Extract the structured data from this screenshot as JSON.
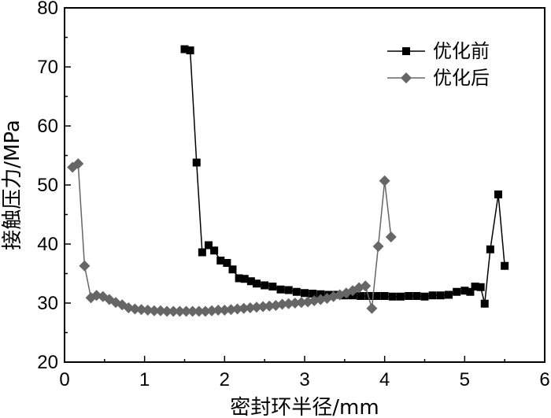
{
  "chart_data": {
    "type": "line",
    "xlabel": "密封环半径/mm",
    "ylabel": "接触压力/MPa",
    "xlim": [
      0,
      6
    ],
    "ylim": [
      20,
      80
    ],
    "xticks": [
      "0",
      "1",
      "2",
      "3",
      "4",
      "5",
      "6"
    ],
    "yticks": [
      "20",
      "30",
      "40",
      "50",
      "60",
      "70",
      "80"
    ],
    "grid": false,
    "legend_position": "top-right",
    "series": [
      {
        "name": "优化前",
        "marker": "square",
        "color": "#000000",
        "x": [
          1.5,
          1.57,
          1.65,
          1.72,
          1.8,
          1.87,
          1.95,
          2.03,
          2.1,
          2.18,
          2.25,
          2.33,
          2.4,
          2.5,
          2.6,
          2.7,
          2.8,
          2.9,
          3.0,
          3.1,
          3.2,
          3.3,
          3.4,
          3.5,
          3.6,
          3.7,
          3.8,
          3.9,
          4.0,
          4.1,
          4.2,
          4.3,
          4.4,
          4.5,
          4.6,
          4.7,
          4.8,
          4.9,
          5.0,
          5.07,
          5.13,
          5.2,
          5.25,
          5.32,
          5.42,
          5.5
        ],
        "y": [
          73.0,
          72.8,
          53.8,
          38.6,
          39.8,
          38.9,
          37.2,
          36.8,
          35.7,
          34.2,
          34.1,
          33.7,
          33.3,
          33.0,
          32.8,
          32.3,
          32.2,
          31.9,
          31.7,
          31.6,
          31.5,
          31.4,
          31.4,
          31.3,
          31.3,
          31.2,
          31.2,
          31.2,
          31.2,
          31.1,
          31.1,
          31.2,
          31.2,
          31.1,
          31.3,
          31.3,
          31.4,
          31.9,
          32.1,
          31.9,
          32.8,
          32.7,
          29.9,
          39.1,
          48.4,
          36.3
        ]
      },
      {
        "name": "优化后",
        "marker": "diamond",
        "color": "#666666",
        "x": [
          0.1,
          0.17,
          0.25,
          0.33,
          0.4,
          0.48,
          0.56,
          0.64,
          0.72,
          0.8,
          0.88,
          0.96,
          1.04,
          1.12,
          1.2,
          1.28,
          1.36,
          1.44,
          1.52,
          1.6,
          1.68,
          1.76,
          1.84,
          1.92,
          2.0,
          2.08,
          2.16,
          2.24,
          2.32,
          2.4,
          2.48,
          2.56,
          2.64,
          2.72,
          2.8,
          2.88,
          2.96,
          3.04,
          3.12,
          3.2,
          3.28,
          3.36,
          3.44,
          3.52,
          3.6,
          3.68,
          3.76,
          3.84,
          3.92,
          4.0,
          4.08
        ],
        "y": [
          53.0,
          53.6,
          36.3,
          30.9,
          31.3,
          31.1,
          30.6,
          30.1,
          29.7,
          29.2,
          29.0,
          28.9,
          28.8,
          28.7,
          28.7,
          28.6,
          28.6,
          28.6,
          28.6,
          28.6,
          28.6,
          28.6,
          28.7,
          28.8,
          28.8,
          28.9,
          29.0,
          29.1,
          29.2,
          29.3,
          29.4,
          29.5,
          29.6,
          29.8,
          29.9,
          30.0,
          30.1,
          30.2,
          30.4,
          30.6,
          30.8,
          31.1,
          31.4,
          31.7,
          32.1,
          32.6,
          32.9,
          29.1,
          39.6,
          50.7,
          41.2
        ]
      }
    ]
  }
}
